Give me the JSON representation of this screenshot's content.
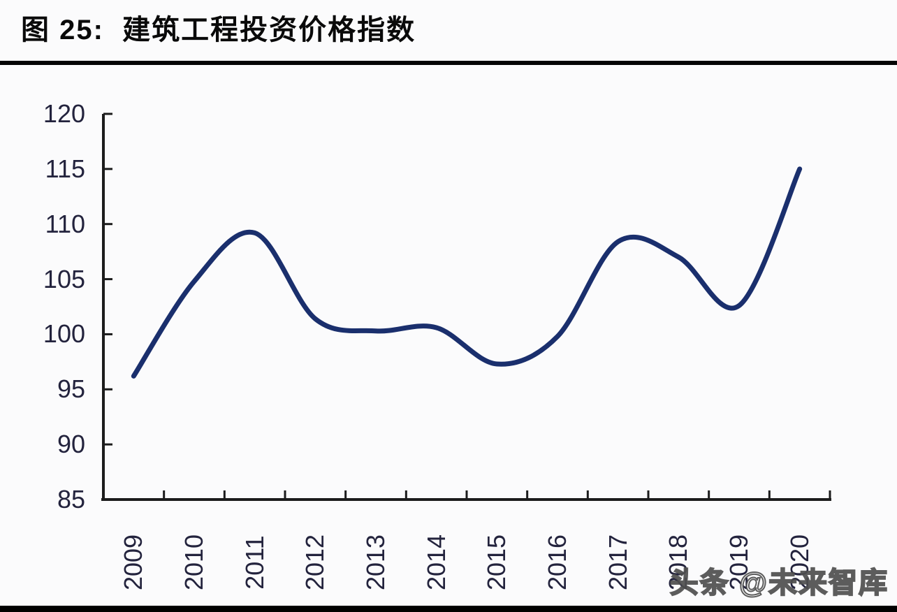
{
  "figure": {
    "title": "图 25:  建筑工程投资价格指数"
  },
  "watermark": {
    "text": "头条 @未来智库"
  },
  "colors": {
    "background": "#fbfbfc",
    "title_text": "#0a0a0a",
    "title_rule": "#050505",
    "axis": "#1c1c1c",
    "tick_label": "#23233d",
    "line": "#1a2f6d",
    "bottom_bar": "#000000",
    "watermark_fill": "#ffffff",
    "watermark_outline": "#4f4f4f"
  },
  "chart_data": {
    "type": "line",
    "title": "图 25: 建筑工程投资价格指数",
    "categories": [
      "2009",
      "2010",
      "2011",
      "2012",
      "2013",
      "2014",
      "2015",
      "2016",
      "2017",
      "2018",
      "2019",
      "2020"
    ],
    "series": [
      {
        "name": "建筑工程投资价格指数",
        "values": [
          96.2,
          104.8,
          109.2,
          101.4,
          100.3,
          100.6,
          97.3,
          99.8,
          108.4,
          107.0,
          102.6,
          115.0
        ]
      }
    ],
    "xlabel": "",
    "ylabel": "",
    "ylim": [
      85,
      120
    ],
    "yticks": [
      85,
      90,
      95,
      100,
      105,
      110,
      115,
      120
    ],
    "grid": false,
    "legend_position": "none",
    "smooth": true,
    "x_tick_style": "boundary-ticks, labels rotated 90° CCW",
    "tick_direction": "inside"
  }
}
